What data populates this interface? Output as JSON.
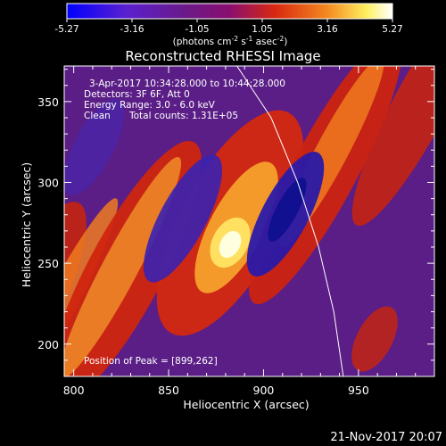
{
  "chart_data": {
    "type": "heatmap",
    "title": "Reconstructed RHESSI Image",
    "xlabel": "Heliocentric X (arcsec)",
    "ylabel": "Heliocentric Y (arcsec)",
    "xlim": [
      795,
      990
    ],
    "ylim": [
      180,
      372
    ],
    "x_ticks": [
      800,
      850,
      900,
      950
    ],
    "y_ticks": [
      200,
      250,
      300,
      350
    ],
    "colorbar": {
      "min": -5.27,
      "max": 5.27,
      "ticks": [
        "-5.27",
        "-3.16",
        "-1.05",
        "1.05",
        "3.16",
        "5.27"
      ],
      "unit_main": "(photons cm",
      "unit_exp1": "-2",
      "unit_mid1": " s",
      "unit_exp2": "-1",
      "unit_mid2": " asec",
      "unit_exp3": "-2",
      "unit_end": ")",
      "colors": [
        "#0000ff",
        "#6020c8",
        "#5a1a8a",
        "#801070",
        "#d02010",
        "#f08020",
        "#ffff80",
        "#ffffff"
      ]
    },
    "annotations": {
      "time_range": "3-Apr-2017 10:34:28.000 to 10:44:28.000",
      "detectors": "Detectors: 3F 6F, Att 0",
      "energy": "Energy Range: 3.0 - 6.0 keV",
      "method": "Clean",
      "counts": "Total counts: 1.31E+05",
      "peak": "Position of Peak = [899,262]"
    },
    "peak": {
      "x": 899,
      "y": 262,
      "value": 5.27
    },
    "solar_limb": [
      {
        "x": 886,
        "y": 372
      },
      {
        "x": 904,
        "y": 340
      },
      {
        "x": 918,
        "y": 300
      },
      {
        "x": 929,
        "y": 260
      },
      {
        "x": 937,
        "y": 220
      },
      {
        "x": 942,
        "y": 180
      }
    ],
    "timestamp": "21-Nov-2017 20:07"
  }
}
